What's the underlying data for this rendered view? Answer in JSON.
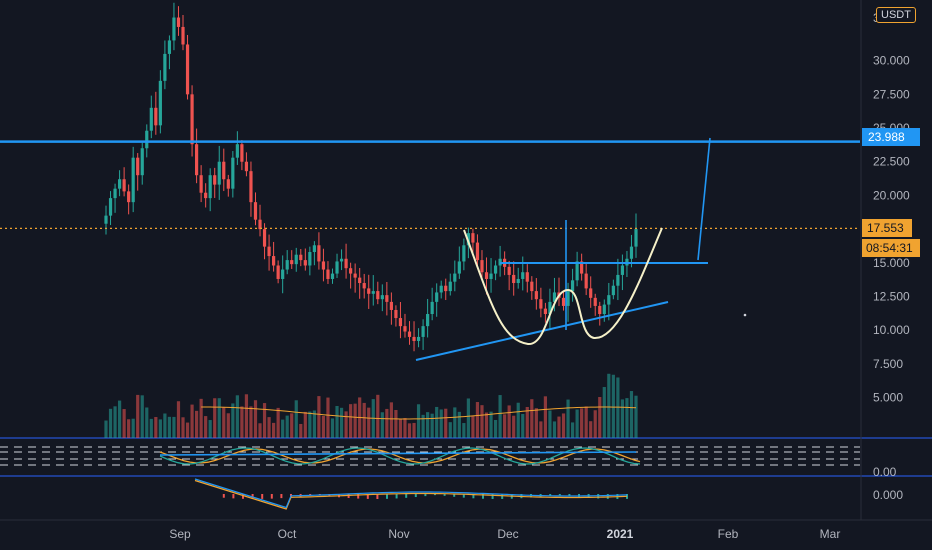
{
  "header": {
    "currency": "USDT"
  },
  "chart_data": {
    "type": "candlestick",
    "ylim": [
      2,
      34.5
    ],
    "y_ticks": [
      "30.000",
      "27.500",
      "25.000",
      "22.500",
      "20.000",
      "15.000",
      "12.500",
      "10.000",
      "7.500",
      "5.000"
    ],
    "y_top_partial": "3",
    "x_ticks": [
      {
        "label": "Sep",
        "bold": false
      },
      {
        "label": "Oct",
        "bold": false
      },
      {
        "label": "Nov",
        "bold": false
      },
      {
        "label": "Dec",
        "bold": false
      },
      {
        "label": "2021",
        "bold": true
      },
      {
        "label": "Feb",
        "bold": false
      },
      {
        "label": "Mar",
        "bold": false
      }
    ],
    "price_tags": {
      "resistance": "23.988",
      "last_price": "17.553",
      "countdown": "08:54:31"
    },
    "resistance_level": 23.988,
    "last_price": 17.553,
    "closes": [
      18.5,
      19.8,
      20.5,
      21.2,
      20.3,
      19.5,
      22.8,
      21.5,
      23.5,
      24.8,
      26.5,
      25.2,
      28.5,
      30.5,
      31.5,
      33.2,
      32.5,
      31.2,
      27.5,
      23.8,
      21.5,
      20.2,
      19.8,
      21.5,
      20.8,
      22.5,
      21.2,
      20.5,
      22.8,
      23.8,
      22.5,
      21.8,
      19.5,
      18.2,
      17.5,
      16.2,
      15.5,
      14.8,
      13.8,
      14.5,
      15.2,
      14.9,
      15.6,
      15.2,
      14.8,
      15.8,
      16.3,
      15.1,
      14.5,
      13.8,
      14.2,
      15.1,
      15.3,
      14.6,
      14.2,
      13.9,
      13.5,
      13.1,
      12.7,
      12.9,
      12.3,
      12.6,
      12.1,
      11.5,
      10.9,
      10.3,
      9.9,
      9.5,
      9.2,
      9.5,
      10.3,
      11.2,
      12.1,
      12.8,
      13.3,
      12.9,
      13.6,
      14.2,
      15.1,
      16.3,
      17.2,
      16.5,
      15.2,
      14.3,
      13.8,
      14.2,
      14.8,
      15.3,
      14.7,
      14.1,
      13.5,
      13.8,
      14.3,
      13.6,
      12.9,
      12.3,
      11.6,
      11.2,
      12.1,
      12.8,
      12.4,
      11.8,
      12.9,
      13.7,
      15.1,
      14.2,
      13.1,
      12.4,
      11.8,
      11.2,
      11.9,
      12.6,
      13.3,
      14.1,
      14.8,
      15.3,
      16.2,
      17.5
    ]
  }
}
